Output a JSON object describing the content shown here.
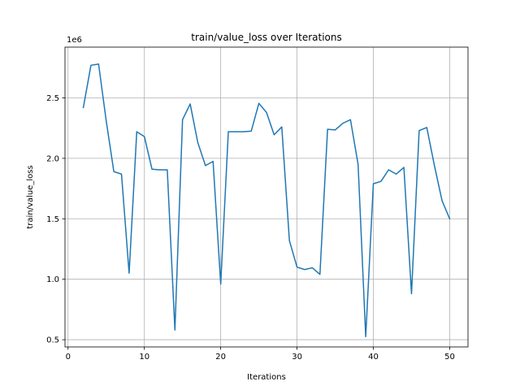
{
  "chart_data": {
    "type": "line",
    "title": "train/value_loss over Iterations",
    "xlabel": "Iterations",
    "ylabel": "train/value_loss",
    "y_multiplier_label": "1e6",
    "xlim": [
      -0.4,
      52.4
    ],
    "ylim": [
      0.44,
      2.92
    ],
    "xticks": [
      0,
      10,
      20,
      30,
      40,
      50
    ],
    "yticks": [
      0.5,
      1.0,
      1.5,
      2.0,
      2.5
    ],
    "ytick_labels": [
      "0.5",
      "1.0",
      "1.5",
      "2.0",
      "2.5"
    ],
    "grid": true,
    "series": [
      {
        "color": "#1f77b4",
        "x": [
          2,
          3,
          4,
          5,
          6,
          7,
          8,
          9,
          10,
          11,
          12,
          13,
          14,
          15,
          16,
          17,
          18,
          19,
          20,
          21,
          22,
          23,
          24,
          25,
          26,
          27,
          28,
          29,
          30,
          31,
          32,
          33,
          34,
          35,
          36,
          37,
          38,
          39,
          40,
          41,
          42,
          43,
          44,
          45,
          46,
          47,
          48,
          49,
          50
        ],
        "values": [
          2.42,
          2.77,
          2.78,
          2.31,
          1.89,
          1.87,
          1.05,
          2.22,
          2.18,
          1.91,
          1.905,
          1.905,
          0.58,
          2.32,
          2.45,
          2.13,
          1.94,
          1.975,
          0.96,
          2.22,
          2.22,
          2.22,
          2.225,
          2.455,
          2.38,
          2.195,
          2.26,
          1.32,
          1.1,
          1.08,
          1.095,
          1.04,
          2.24,
          2.235,
          2.29,
          2.32,
          1.95,
          0.525,
          1.79,
          1.81,
          1.905,
          1.87,
          1.925,
          0.88,
          2.23,
          2.255,
          1.94,
          1.65,
          1.5
        ]
      }
    ]
  }
}
